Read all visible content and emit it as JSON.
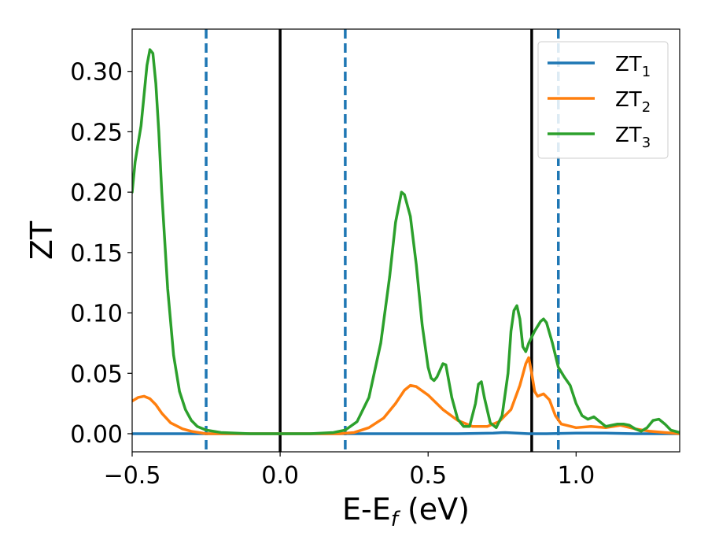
{
  "chart_data": {
    "type": "line",
    "title": "",
    "xlabel": "E-E",
    "xlabel_sub": "f",
    "xlabel_unit": " (eV)",
    "ylabel": "ZT",
    "xlim": [
      -0.5,
      1.35
    ],
    "ylim": [
      -0.015,
      0.335
    ],
    "xticks": [
      -0.5,
      0.0,
      0.5,
      1.0
    ],
    "xtick_labels": [
      "−0.5",
      "0.0",
      "0.5",
      "1.0"
    ],
    "yticks": [
      0.0,
      0.05,
      0.1,
      0.15,
      0.2,
      0.25,
      0.3
    ],
    "ytick_labels": [
      "0.00",
      "0.05",
      "0.10",
      "0.15",
      "0.20",
      "0.25",
      "0.30"
    ],
    "grid": false,
    "legend_position": "top-right",
    "vlines": [
      {
        "x": -0.25,
        "style": "dashed",
        "color": "#1f77b4"
      },
      {
        "x": 0.0,
        "style": "solid",
        "color": "#000000"
      },
      {
        "x": 0.22,
        "style": "dashed",
        "color": "#1f77b4"
      },
      {
        "x": 0.85,
        "style": "solid",
        "color": "#000000"
      },
      {
        "x": 0.94,
        "style": "dashed",
        "color": "#1f77b4"
      }
    ],
    "series": [
      {
        "name": "ZT",
        "sub": "1",
        "color": "#1f77b4",
        "points": [
          [
            -0.5,
            0.0
          ],
          [
            -0.2,
            0.0
          ],
          [
            0.2,
            0.0
          ],
          [
            0.6,
            0.0
          ],
          [
            0.72,
            0.0005
          ],
          [
            0.76,
            0.001
          ],
          [
            0.8,
            0.0005
          ],
          [
            0.84,
            0.0
          ],
          [
            0.9,
            0.0
          ],
          [
            1.0,
            0.0005
          ],
          [
            1.1,
            0.0005
          ],
          [
            1.2,
            0.0
          ],
          [
            1.35,
            0.0
          ]
        ]
      },
      {
        "name": "ZT",
        "sub": "2",
        "color": "#ff7f0e",
        "points": [
          [
            -0.5,
            0.027
          ],
          [
            -0.48,
            0.03
          ],
          [
            -0.46,
            0.031
          ],
          [
            -0.44,
            0.029
          ],
          [
            -0.42,
            0.024
          ],
          [
            -0.4,
            0.017
          ],
          [
            -0.37,
            0.009
          ],
          [
            -0.33,
            0.004
          ],
          [
            -0.3,
            0.002
          ],
          [
            -0.25,
            0.0
          ],
          [
            0.0,
            0.0
          ],
          [
            0.2,
            0.0
          ],
          [
            0.25,
            0.001
          ],
          [
            0.3,
            0.005
          ],
          [
            0.35,
            0.013
          ],
          [
            0.39,
            0.025
          ],
          [
            0.42,
            0.036
          ],
          [
            0.44,
            0.04
          ],
          [
            0.46,
            0.039
          ],
          [
            0.5,
            0.032
          ],
          [
            0.55,
            0.02
          ],
          [
            0.6,
            0.011
          ],
          [
            0.65,
            0.006
          ],
          [
            0.7,
            0.006
          ],
          [
            0.74,
            0.01
          ],
          [
            0.78,
            0.02
          ],
          [
            0.81,
            0.04
          ],
          [
            0.83,
            0.058
          ],
          [
            0.84,
            0.063
          ],
          [
            0.85,
            0.05
          ],
          [
            0.86,
            0.035
          ],
          [
            0.87,
            0.031
          ],
          [
            0.89,
            0.033
          ],
          [
            0.91,
            0.028
          ],
          [
            0.93,
            0.015
          ],
          [
            0.95,
            0.008
          ],
          [
            1.0,
            0.005
          ],
          [
            1.05,
            0.006
          ],
          [
            1.1,
            0.005
          ],
          [
            1.15,
            0.007
          ],
          [
            1.2,
            0.004
          ],
          [
            1.25,
            0.002
          ],
          [
            1.3,
            0.001
          ],
          [
            1.35,
            0.0
          ]
        ]
      },
      {
        "name": "ZT",
        "sub": "3",
        "color": "#2ca02c",
        "points": [
          [
            -0.5,
            0.2
          ],
          [
            -0.49,
            0.225
          ],
          [
            -0.48,
            0.24
          ],
          [
            -0.47,
            0.255
          ],
          [
            -0.46,
            0.28
          ],
          [
            -0.45,
            0.305
          ],
          [
            -0.44,
            0.318
          ],
          [
            -0.43,
            0.315
          ],
          [
            -0.42,
            0.29
          ],
          [
            -0.41,
            0.25
          ],
          [
            -0.4,
            0.2
          ],
          [
            -0.38,
            0.12
          ],
          [
            -0.36,
            0.065
          ],
          [
            -0.34,
            0.035
          ],
          [
            -0.32,
            0.02
          ],
          [
            -0.3,
            0.011
          ],
          [
            -0.28,
            0.006
          ],
          [
            -0.25,
            0.003
          ],
          [
            -0.2,
            0.001
          ],
          [
            -0.1,
            0.0
          ],
          [
            0.0,
            0.0
          ],
          [
            0.1,
            0.0
          ],
          [
            0.18,
            0.001
          ],
          [
            0.22,
            0.003
          ],
          [
            0.26,
            0.01
          ],
          [
            0.3,
            0.03
          ],
          [
            0.34,
            0.075
          ],
          [
            0.37,
            0.13
          ],
          [
            0.39,
            0.175
          ],
          [
            0.41,
            0.2
          ],
          [
            0.42,
            0.198
          ],
          [
            0.44,
            0.18
          ],
          [
            0.46,
            0.14
          ],
          [
            0.48,
            0.09
          ],
          [
            0.5,
            0.055
          ],
          [
            0.51,
            0.046
          ],
          [
            0.52,
            0.044
          ],
          [
            0.53,
            0.047
          ],
          [
            0.55,
            0.058
          ],
          [
            0.56,
            0.057
          ],
          [
            0.58,
            0.03
          ],
          [
            0.6,
            0.012
          ],
          [
            0.62,
            0.006
          ],
          [
            0.64,
            0.006
          ],
          [
            0.66,
            0.025
          ],
          [
            0.67,
            0.041
          ],
          [
            0.68,
            0.043
          ],
          [
            0.69,
            0.03
          ],
          [
            0.71,
            0.009
          ],
          [
            0.73,
            0.005
          ],
          [
            0.75,
            0.015
          ],
          [
            0.77,
            0.05
          ],
          [
            0.78,
            0.085
          ],
          [
            0.79,
            0.102
          ],
          [
            0.8,
            0.106
          ],
          [
            0.81,
            0.095
          ],
          [
            0.82,
            0.072
          ],
          [
            0.83,
            0.068
          ],
          [
            0.84,
            0.075
          ],
          [
            0.86,
            0.085
          ],
          [
            0.88,
            0.093
          ],
          [
            0.89,
            0.095
          ],
          [
            0.9,
            0.092
          ],
          [
            0.92,
            0.075
          ],
          [
            0.94,
            0.055
          ],
          [
            0.96,
            0.047
          ],
          [
            0.98,
            0.04
          ],
          [
            1.0,
            0.025
          ],
          [
            1.02,
            0.015
          ],
          [
            1.04,
            0.012
          ],
          [
            1.06,
            0.014
          ],
          [
            1.08,
            0.01
          ],
          [
            1.1,
            0.006
          ],
          [
            1.12,
            0.007
          ],
          [
            1.14,
            0.008
          ],
          [
            1.16,
            0.008
          ],
          [
            1.18,
            0.007
          ],
          [
            1.2,
            0.004
          ],
          [
            1.22,
            0.002
          ],
          [
            1.24,
            0.005
          ],
          [
            1.26,
            0.011
          ],
          [
            1.28,
            0.012
          ],
          [
            1.3,
            0.008
          ],
          [
            1.32,
            0.003
          ],
          [
            1.35,
            0.001
          ]
        ]
      }
    ]
  }
}
